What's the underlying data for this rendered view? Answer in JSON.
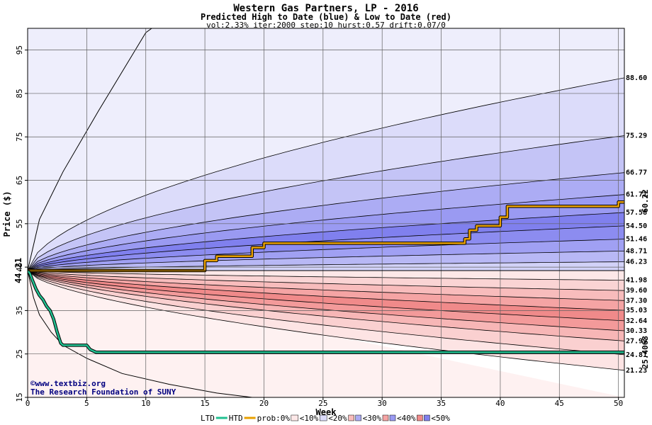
{
  "chart_data": {
    "type": "area",
    "title": "Western Gas Partners, LP - 2016",
    "subtitle": "Predicted High to Date (blue) &  Low to Date (red)",
    "params": "vol:2.33% iter:2000 step:10 hurst:0.57 drift:0.07/0",
    "xlabel": "Week",
    "ylabel": "Price ($)",
    "xlim": [
      0,
      50.5
    ],
    "ylim": [
      15,
      100
    ],
    "xticks": [
      0,
      5,
      10,
      15,
      20,
      25,
      30,
      35,
      40,
      45,
      50
    ],
    "yticks": [
      15,
      25,
      35,
      45,
      55,
      65,
      75,
      85,
      95
    ],
    "grid": true,
    "start_price_label": "44.21",
    "start_price": 44.21,
    "bands": {
      "high": [
        {
          "end": 88.6,
          "band": "<10%",
          "color": "#dcdcfa"
        },
        {
          "end": 75.29,
          "band": "<20%",
          "color": "#c4c4f6"
        },
        {
          "end": 66.77,
          "band": "<30%",
          "color": "#acacf4"
        },
        {
          "end": 61.71,
          "band": "<40%",
          "color": "#9a9af2"
        },
        {
          "end": 57.58,
          "band": "<50%",
          "color": "#8080ee"
        },
        {
          "end": 54.5,
          "band": "<50%",
          "color": "#8c8cf0"
        },
        {
          "end": 51.46,
          "band": "<40%",
          "color": "#a0a0f3"
        },
        {
          "end": 48.71,
          "band": "<30%",
          "color": "#b8b8f5"
        },
        {
          "end": 46.23,
          "band": "<20%",
          "color": "#d2d2f8"
        }
      ],
      "low": [
        {
          "end": 41.98,
          "band": "<10%",
          "color": "#fde8e8"
        },
        {
          "end": 39.6,
          "band": "<20%",
          "color": "#fad4d4"
        },
        {
          "end": 37.3,
          "band": "<30%",
          "color": "#f8bcbc"
        },
        {
          "end": 35.03,
          "band": "<40%",
          "color": "#f5a4a4"
        },
        {
          "end": 32.64,
          "band": "<50%",
          "color": "#f08a8a"
        },
        {
          "end": 30.33,
          "band": "<50%",
          "color": "#f39a9a"
        },
        {
          "end": 27.99,
          "band": "<40%",
          "color": "#f7b6b6"
        },
        {
          "end": 24.81,
          "band": "<30%",
          "color": "#fad0d0"
        },
        {
          "end": 21.23,
          "band": "<20%",
          "color": "#fde4e4"
        }
      ],
      "outer_high_color": "#eeeefc",
      "outer_low_color": "#fef1f1"
    },
    "series": [
      {
        "name": "HTD",
        "color": "#e8a000",
        "end_label": "60.22",
        "end_value": 60.22,
        "points": [
          [
            0,
            44.21
          ],
          [
            14.8,
            44.21
          ],
          [
            15,
            46.5
          ],
          [
            16,
            47.5
          ],
          [
            18.9,
            47.5
          ],
          [
            19,
            49.5
          ],
          [
            20,
            50.5
          ],
          [
            36.8,
            50.5
          ],
          [
            37,
            51.5
          ],
          [
            37.4,
            53.5
          ],
          [
            38,
            54.5
          ],
          [
            39.6,
            54.5
          ],
          [
            40,
            56.5
          ],
          [
            40.6,
            59
          ],
          [
            49.5,
            59
          ],
          [
            50,
            60
          ],
          [
            50.5,
            60.22
          ]
        ]
      },
      {
        "name": "LTD",
        "color": "#20c090",
        "end_label": "25.4063",
        "end_value": 25.4063,
        "points": [
          [
            0,
            44.21
          ],
          [
            0.2,
            43.5
          ],
          [
            0.4,
            42
          ],
          [
            0.7,
            40
          ],
          [
            1,
            38.5
          ],
          [
            1.3,
            37.5
          ],
          [
            1.6,
            36
          ],
          [
            1.9,
            35
          ],
          [
            2.2,
            33
          ],
          [
            2.5,
            30
          ],
          [
            2.8,
            27.5
          ],
          [
            3,
            27
          ],
          [
            5,
            27
          ],
          [
            5.3,
            26
          ],
          [
            5.8,
            25.4
          ],
          [
            50.5,
            25.4063
          ]
        ]
      }
    ],
    "envelope_upper": [
      [
        0,
        44.21
      ],
      [
        1,
        56
      ],
      [
        3,
        67
      ],
      [
        6,
        81
      ],
      [
        8,
        90
      ],
      [
        10,
        99
      ],
      [
        10.5,
        100
      ]
    ],
    "envelope_lower": [
      [
        0,
        44.21
      ],
      [
        0.5,
        38
      ],
      [
        1,
        34
      ],
      [
        2,
        30
      ],
      [
        3,
        27
      ],
      [
        5,
        24
      ],
      [
        8,
        20.5
      ],
      [
        12,
        18
      ],
      [
        16,
        16
      ],
      [
        19,
        15
      ]
    ],
    "legend": [
      "LTD",
      "HTD",
      "prob:0%",
      "<10%",
      "<20%",
      "<30%",
      "<40%",
      "<50%"
    ],
    "legend_swatches": [
      "#fde8e8",
      "#dcdcfa",
      "#c4c4f6",
      "#f8bcbc",
      "#acacf4",
      "#f5a4a4",
      "#9a9af2",
      "#f08a8a",
      "#8080ee"
    ],
    "credits": [
      "©www.textbiz.org",
      "The Research Foundation of SUNY"
    ]
  }
}
